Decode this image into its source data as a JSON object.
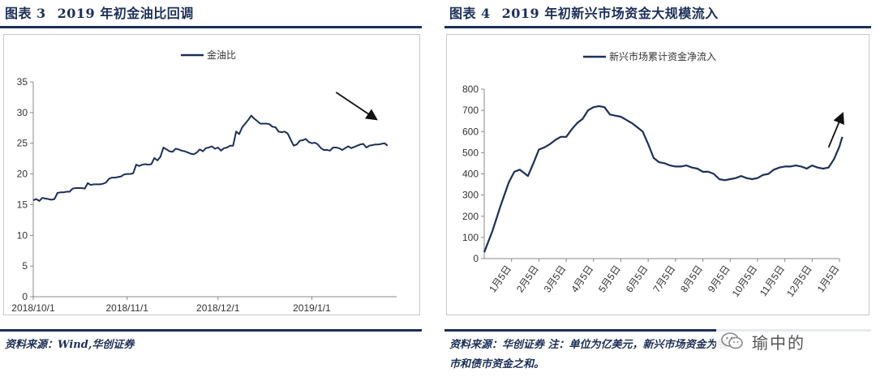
{
  "left": {
    "title_prefix": "图表",
    "title_num": "3",
    "title_text": "2019 年初金油比回调",
    "source": "资料来源：Wind,华创证券"
  },
  "right": {
    "title_prefix": "图表",
    "title_num": "4",
    "title_text": "2019 年初新兴市场资金大规模流入",
    "source_line1": "资料来源：华创证券 注：单位为亿美元，新兴市场资金为股",
    "source_line2": "市和债市资金之和。"
  },
  "watermark": "瑜中的",
  "chart_data": [
    {
      "type": "line",
      "legend": "金油比",
      "legend_position": "top-center",
      "ylim": [
        0,
        35
      ],
      "yticks": [
        0,
        5,
        10,
        15,
        20,
        25,
        30,
        35
      ],
      "x_tick_labels": [
        "2018/10/1",
        "2018/11/1",
        "2018/12/1",
        "2019/1/1"
      ],
      "x_tick_days": [
        0,
        31,
        61,
        92
      ],
      "x_range_days": [
        0,
        120
      ],
      "grid": false,
      "annotation": "arrow-down-right",
      "line_color": "#1c2f57",
      "series": [
        {
          "x_days": [
            0,
            1,
            2,
            3,
            4,
            5,
            6,
            7,
            8,
            9,
            10,
            11,
            12,
            13,
            14,
            15,
            16,
            17,
            18,
            19,
            20,
            21,
            22,
            23,
            24,
            25,
            26,
            27,
            28,
            29,
            30,
            31,
            32,
            33,
            34,
            35,
            36,
            37,
            38,
            39,
            40,
            41,
            42,
            43,
            44,
            45,
            46,
            47,
            48,
            49,
            50,
            51,
            52,
            53,
            54,
            55,
            56,
            57,
            58,
            59,
            60,
            61,
            62,
            63,
            64,
            65,
            66,
            67,
            68,
            69,
            70,
            71,
            72,
            73,
            74,
            75,
            76,
            77,
            78,
            79,
            80,
            81,
            82,
            83,
            84,
            85,
            86,
            87,
            88,
            89,
            90,
            91,
            92,
            93,
            94,
            95,
            96,
            97,
            98,
            99,
            100,
            101,
            102,
            103,
            104,
            105,
            106,
            107,
            108,
            109,
            110,
            111,
            112,
            113,
            114,
            115,
            116,
            117
          ],
          "values": [
            15.7,
            15.9,
            15.6,
            16.1,
            16.0,
            15.9,
            15.8,
            15.9,
            16.9,
            17.0,
            17.0,
            17.1,
            17.1,
            17.6,
            17.7,
            17.7,
            17.7,
            17.6,
            18.5,
            18.2,
            18.3,
            18.3,
            18.3,
            18.4,
            18.6,
            19.2,
            19.4,
            19.4,
            19.5,
            19.6,
            19.9,
            20.0,
            20.0,
            20.1,
            21.5,
            21.3,
            21.5,
            21.6,
            21.5,
            21.6,
            22.6,
            22.2,
            22.8,
            24.3,
            24.0,
            23.7,
            23.6,
            24.1,
            24.0,
            23.8,
            23.7,
            23.5,
            23.3,
            23.2,
            23.5,
            24.0,
            23.7,
            24.2,
            24.3,
            24.5,
            24.1,
            24.3,
            23.8,
            24.2,
            24.3,
            24.6,
            24.6,
            26.9,
            26.5,
            27.6,
            28.2,
            28.8,
            29.5,
            29.0,
            28.6,
            28.2,
            28.2,
            28.2,
            28.1,
            27.7,
            27.6,
            26.9,
            26.8,
            26.9,
            26.6,
            25.6,
            24.6,
            24.8,
            25.4,
            25.5,
            25.7,
            25.2,
            25.0,
            25.1,
            24.8,
            24.2,
            23.9,
            23.9,
            23.8,
            24.3,
            24.3,
            24.2,
            23.9,
            24.2,
            24.5,
            24.2,
            24.4,
            24.6,
            24.8,
            24.9,
            24.3,
            24.6,
            24.7,
            24.8,
            24.8,
            24.9,
            25.0,
            24.6
          ]
        }
      ]
    },
    {
      "type": "line",
      "legend": "新兴市场累计资金净流入",
      "legend_position": "top-center",
      "ylim": [
        0,
        800
      ],
      "yticks": [
        0,
        100,
        200,
        300,
        400,
        500,
        600,
        700,
        800
      ],
      "x_tick_labels": [
        "1月5日",
        "2月5日",
        "3月5日",
        "4月5日",
        "5月5日",
        "6月5日",
        "7月5日",
        "8月5日",
        "9月5日",
        "10月5日",
        "11月5日",
        "12月5日",
        "1月5日"
      ],
      "x_range_months": [
        0,
        13
      ],
      "grid": false,
      "annotation": "arrow-up-right",
      "line_color": "#1c2f57",
      "series": [
        {
          "x_months": [
            0.0,
            0.3,
            0.6,
            0.9,
            1.1,
            1.3,
            1.6,
            1.8,
            2.0,
            2.2,
            2.4,
            2.6,
            2.8,
            3.0,
            3.2,
            3.4,
            3.6,
            3.8,
            4.0,
            4.2,
            4.4,
            4.6,
            4.8,
            5.0,
            5.2,
            5.4,
            5.6,
            5.8,
            6.0,
            6.2,
            6.4,
            6.6,
            6.8,
            7.0,
            7.2,
            7.4,
            7.6,
            7.8,
            8.0,
            8.2,
            8.4,
            8.6,
            8.8,
            9.0,
            9.2,
            9.4,
            9.6,
            9.8,
            10.0,
            10.2,
            10.4,
            10.6,
            10.8,
            11.0,
            11.2,
            11.4,
            11.6,
            11.8,
            12.0,
            12.2,
            12.4,
            12.6,
            12.8,
            13.0,
            13.1
          ],
          "values": [
            30,
            130,
            250,
            360,
            410,
            420,
            390,
            450,
            515,
            525,
            540,
            560,
            575,
            575,
            610,
            640,
            660,
            700,
            715,
            720,
            715,
            680,
            675,
            670,
            655,
            640,
            620,
            600,
            540,
            475,
            455,
            450,
            440,
            435,
            435,
            440,
            430,
            425,
            410,
            410,
            400,
            375,
            370,
            375,
            380,
            390,
            380,
            375,
            380,
            395,
            400,
            420,
            430,
            435,
            435,
            440,
            435,
            425,
            440,
            430,
            425,
            430,
            470,
            530,
            575
          ]
        }
      ]
    }
  ]
}
